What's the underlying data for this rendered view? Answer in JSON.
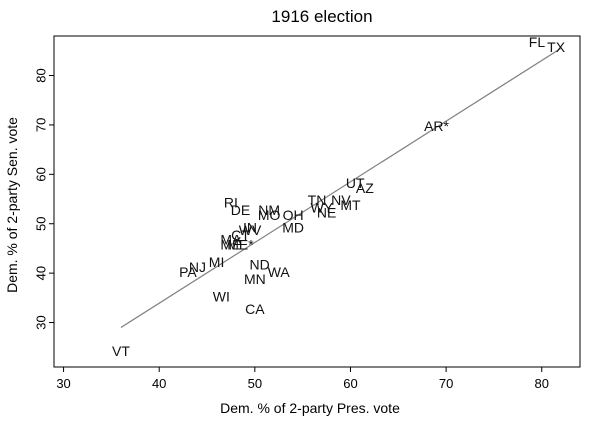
{
  "chart_data": {
    "type": "scatter",
    "title": "1916 election",
    "xlabel": "Dem. % of 2-party Pres. vote",
    "ylabel": "Dem. % of 2-party Sen. vote",
    "xlim": [
      29,
      84
    ],
    "ylim": [
      21,
      88
    ],
    "xticks": [
      30,
      40,
      50,
      60,
      70,
      80
    ],
    "yticks": [
      30,
      40,
      50,
      60,
      70,
      80
    ],
    "grid": false,
    "legend": "none",
    "fit_line": {
      "x": [
        36,
        82
      ],
      "y": [
        29,
        85.5
      ]
    },
    "points": [
      {
        "label": "FL",
        "x": 79.5,
        "y": 86.5
      },
      {
        "label": "TX",
        "x": 81.5,
        "y": 85.5
      },
      {
        "label": "AR*",
        "x": 69.0,
        "y": 69.5
      },
      {
        "label": "UT",
        "x": 60.5,
        "y": 58.0
      },
      {
        "label": "AZ",
        "x": 61.5,
        "y": 57.0
      },
      {
        "label": "TN",
        "x": 56.5,
        "y": 54.5
      },
      {
        "label": "NV",
        "x": 59.0,
        "y": 54.5
      },
      {
        "label": "MT",
        "x": 60.0,
        "y": 53.5
      },
      {
        "label": "WY",
        "x": 57.0,
        "y": 53.0
      },
      {
        "label": "NE",
        "x": 57.5,
        "y": 52.0
      },
      {
        "label": "RI",
        "x": 47.5,
        "y": 54.0
      },
      {
        "label": "DE",
        "x": 48.5,
        "y": 52.5
      },
      {
        "label": "NM",
        "x": 51.5,
        "y": 52.5
      },
      {
        "label": "MO",
        "x": 51.5,
        "y": 51.5
      },
      {
        "label": "OH",
        "x": 54.0,
        "y": 51.5
      },
      {
        "label": "MD",
        "x": 54.0,
        "y": 49.0
      },
      {
        "label": "IN",
        "x": 49.5,
        "y": 49.0
      },
      {
        "label": "WV",
        "x": 49.5,
        "y": 48.5
      },
      {
        "label": "CT",
        "x": 48.5,
        "y": 47.5
      },
      {
        "label": "MA",
        "x": 47.5,
        "y": 46.5
      },
      {
        "label": "ME",
        "x": 47.5,
        "y": 45.5
      },
      {
        "label": "ME*",
        "x": 48.5,
        "y": 45.5
      },
      {
        "label": "ND",
        "x": 50.5,
        "y": 41.5
      },
      {
        "label": "WA",
        "x": 52.5,
        "y": 40.0
      },
      {
        "label": "MN",
        "x": 50.0,
        "y": 38.5
      },
      {
        "label": "MI",
        "x": 46.0,
        "y": 42.0
      },
      {
        "label": "NJ",
        "x": 44.0,
        "y": 41.0
      },
      {
        "label": "PA",
        "x": 43.0,
        "y": 40.0
      },
      {
        "label": "WI",
        "x": 46.5,
        "y": 35.0
      },
      {
        "label": "CA",
        "x": 50.0,
        "y": 32.5
      },
      {
        "label": "VT",
        "x": 36.0,
        "y": 24.0
      }
    ]
  }
}
